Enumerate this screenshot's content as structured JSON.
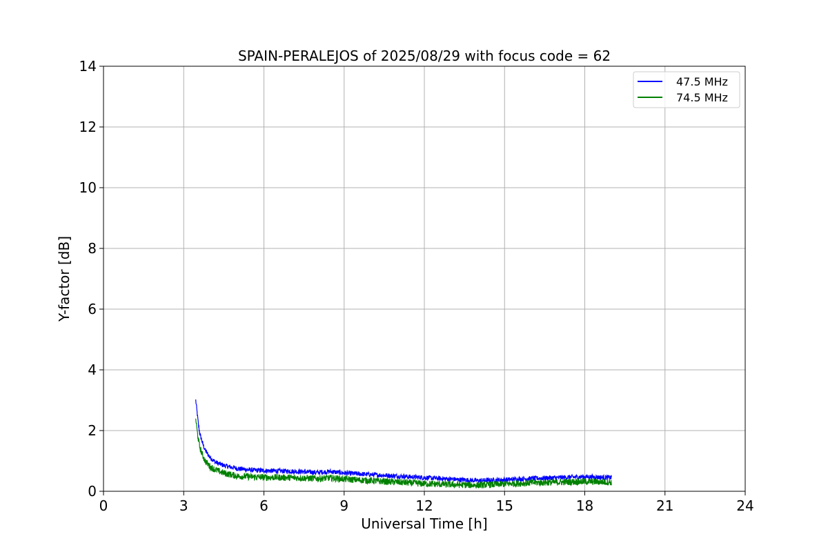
{
  "chart_data": {
    "type": "line",
    "title": "SPAIN-PERALEJOS of 2025/08/29 with focus code = 62",
    "xlabel": "Universal Time [h]",
    "ylabel": "Y-factor [dB]",
    "xlim": [
      0,
      24
    ],
    "ylim": [
      0,
      14
    ],
    "xticks": [
      0,
      3,
      6,
      9,
      12,
      15,
      18,
      21,
      24
    ],
    "yticks": [
      0,
      2,
      4,
      6,
      8,
      10,
      12,
      14
    ],
    "grid": true,
    "legend_position": "top-right",
    "series": [
      {
        "name": "47.5 MHz",
        "color": "#0000ff",
        "x": [
          3.45,
          3.5,
          3.55,
          3.6,
          3.7,
          3.8,
          4.0,
          4.2,
          4.5,
          5.0,
          5.5,
          6.0,
          7.0,
          8.0,
          8.5,
          9.0,
          10.0,
          11.0,
          12.0,
          13.0,
          14.0,
          15.0,
          16.0,
          17.0,
          18.0,
          19.0
        ],
        "y": [
          3.0,
          2.6,
          2.2,
          1.9,
          1.6,
          1.35,
          1.1,
          0.95,
          0.85,
          0.75,
          0.7,
          0.68,
          0.66,
          0.62,
          0.65,
          0.6,
          0.55,
          0.5,
          0.45,
          0.4,
          0.35,
          0.38,
          0.42,
          0.45,
          0.48,
          0.45
        ],
        "spread": 0.16
      },
      {
        "name": "74.5 MHz",
        "color": "#008000",
        "x": [
          3.45,
          3.5,
          3.55,
          3.6,
          3.7,
          3.8,
          4.0,
          4.2,
          4.5,
          5.0,
          5.5,
          6.0,
          7.0,
          8.0,
          8.5,
          9.0,
          10.0,
          11.0,
          12.0,
          13.0,
          14.0,
          15.0,
          16.0,
          17.0,
          18.0,
          19.0
        ],
        "y": [
          2.4,
          2.0,
          1.7,
          1.45,
          1.2,
          1.0,
          0.8,
          0.7,
          0.6,
          0.5,
          0.48,
          0.46,
          0.45,
          0.42,
          0.44,
          0.4,
          0.35,
          0.3,
          0.25,
          0.22,
          0.2,
          0.24,
          0.28,
          0.3,
          0.32,
          0.3
        ],
        "spread": 0.22
      }
    ]
  }
}
